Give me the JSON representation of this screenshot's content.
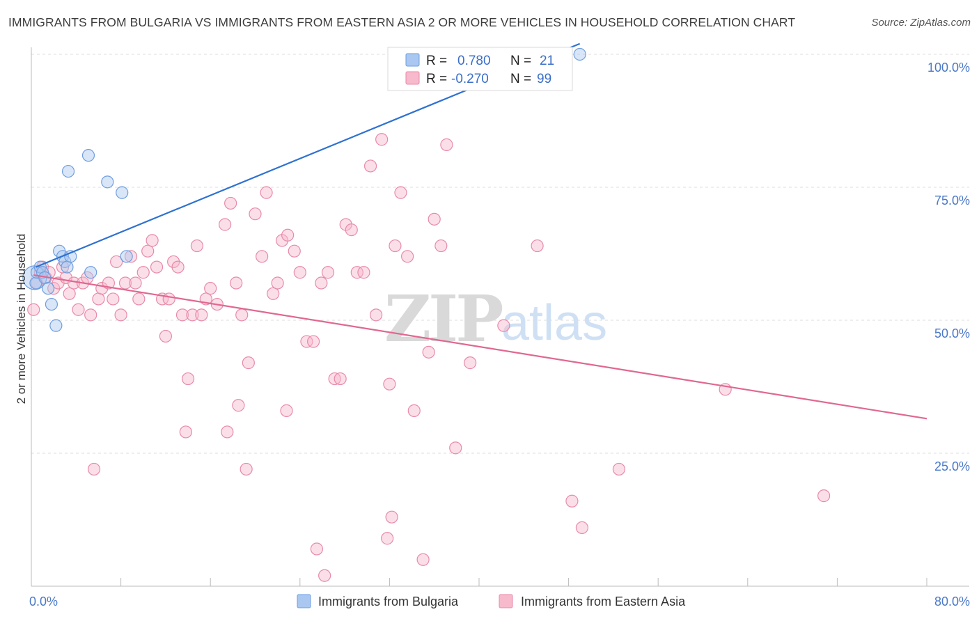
{
  "title": "IMMIGRANTS FROM BULGARIA VS IMMIGRANTS FROM EASTERN ASIA 2 OR MORE VEHICLES IN HOUSEHOLD CORRELATION CHART",
  "source": "Source: ZipAtlas.com",
  "watermark": {
    "zip": "ZIP",
    "atlas": "atlas"
  },
  "stats": {
    "r_label": "R =",
    "n_label": "N =",
    "rows": [
      {
        "r": "0.780",
        "n": "21",
        "color": "#a9c7f0",
        "stroke": "#6f9ee0"
      },
      {
        "r": "-0.270",
        "n": "99",
        "color": "#f7b9cc",
        "stroke": "#e88aa8"
      }
    ]
  },
  "chart_data": {
    "type": "scatter",
    "title": "IMMIGRANTS FROM BULGARIA VS IMMIGRANTS FROM EASTERN ASIA 2 OR MORE VEHICLES IN HOUSEHOLD CORRELATION CHART",
    "xlabel": "",
    "ylabel": "2 or more Vehicles in Household",
    "xlim": [
      0,
      80
    ],
    "ylim": [
      0,
      100
    ],
    "x_tick_labels": [
      "0.0%",
      "80.0%"
    ],
    "y_ticks": [
      25,
      50,
      75,
      100
    ],
    "y_tick_labels": [
      "25.0%",
      "50.0%",
      "75.0%",
      "100.0%"
    ],
    "grid": true,
    "legend_position": "bottom-center",
    "series": [
      {
        "name": "Immigrants from Bulgaria",
        "color": "#a9c7f0",
        "stroke": "#6f9ee0",
        "line_color": "#2f72d0",
        "trend": {
          "x": [
            0.4,
            49
          ],
          "y": [
            60,
            102
          ]
        },
        "points": [
          [
            0.3,
            58
          ],
          [
            0.4,
            57
          ],
          [
            0.5,
            59
          ],
          [
            0.8,
            60
          ],
          [
            1.0,
            59
          ],
          [
            1.2,
            58
          ],
          [
            1.5,
            56
          ],
          [
            1.8,
            53
          ],
          [
            2.2,
            49
          ],
          [
            2.5,
            63
          ],
          [
            2.8,
            62
          ],
          [
            3.0,
            61
          ],
          [
            3.2,
            60
          ],
          [
            3.5,
            62
          ],
          [
            5.3,
            59
          ],
          [
            3.3,
            78
          ],
          [
            5.1,
            81
          ],
          [
            6.8,
            76
          ],
          [
            8.1,
            74
          ],
          [
            8.5,
            62
          ],
          [
            49.0,
            100
          ]
        ],
        "sizes": [
          8,
          8,
          8,
          8,
          8,
          8,
          8,
          8,
          8,
          8,
          8,
          8,
          8,
          8,
          8,
          8,
          8,
          8,
          8,
          8,
          8
        ]
      },
      {
        "name": "Immigrants from Eastern Asia",
        "color": "#f7b9cc",
        "stroke": "#e88aa8",
        "line_color": "#e06890",
        "trend": {
          "x": [
            0.2,
            80
          ],
          "y": [
            58.5,
            31.5
          ]
        },
        "points": [
          [
            0.2,
            52
          ],
          [
            0.5,
            57
          ],
          [
            0.8,
            59
          ],
          [
            1.0,
            60
          ],
          [
            1.3,
            58
          ],
          [
            1.6,
            59
          ],
          [
            2.0,
            56
          ],
          [
            2.4,
            57
          ],
          [
            2.8,
            60
          ],
          [
            3.1,
            58
          ],
          [
            3.4,
            55
          ],
          [
            3.8,
            57
          ],
          [
            4.2,
            52
          ],
          [
            4.6,
            57
          ],
          [
            5.0,
            58
          ],
          [
            5.3,
            51
          ],
          [
            6.0,
            54
          ],
          [
            6.3,
            56
          ],
          [
            6.9,
            57
          ],
          [
            7.3,
            54
          ],
          [
            7.6,
            61
          ],
          [
            8.0,
            51
          ],
          [
            8.4,
            57
          ],
          [
            8.9,
            62
          ],
          [
            9.3,
            57
          ],
          [
            9.6,
            54
          ],
          [
            10.0,
            59
          ],
          [
            10.4,
            63
          ],
          [
            10.8,
            65
          ],
          [
            11.2,
            60
          ],
          [
            11.7,
            54
          ],
          [
            12.0,
            47
          ],
          [
            12.3,
            54
          ],
          [
            12.7,
            61
          ],
          [
            13.1,
            60
          ],
          [
            13.5,
            51
          ],
          [
            14.0,
            39
          ],
          [
            14.4,
            51
          ],
          [
            14.8,
            64
          ],
          [
            15.2,
            51
          ],
          [
            15.6,
            54
          ],
          [
            16.0,
            56
          ],
          [
            16.6,
            53
          ],
          [
            17.3,
            68
          ],
          [
            17.8,
            72
          ],
          [
            18.3,
            57
          ],
          [
            18.8,
            51
          ],
          [
            19.4,
            42
          ],
          [
            20.0,
            70
          ],
          [
            20.6,
            62
          ],
          [
            21.0,
            74
          ],
          [
            21.6,
            55
          ],
          [
            22.0,
            57
          ],
          [
            22.4,
            65
          ],
          [
            22.9,
            66
          ],
          [
            23.5,
            63
          ],
          [
            24.0,
            59
          ],
          [
            24.6,
            46
          ],
          [
            25.2,
            46
          ],
          [
            25.9,
            57
          ],
          [
            26.5,
            59
          ],
          [
            27.1,
            39
          ],
          [
            27.6,
            39
          ],
          [
            28.1,
            68
          ],
          [
            28.6,
            67
          ],
          [
            29.1,
            59
          ],
          [
            29.7,
            59
          ],
          [
            30.3,
            79
          ],
          [
            30.8,
            51
          ],
          [
            31.3,
            84
          ],
          [
            32.0,
            38
          ],
          [
            32.5,
            64
          ],
          [
            33.0,
            74
          ],
          [
            33.6,
            62
          ],
          [
            34.2,
            33
          ],
          [
            35.0,
            5
          ],
          [
            35.5,
            44
          ],
          [
            36.0,
            69
          ],
          [
            36.6,
            64
          ],
          [
            37.1,
            83
          ],
          [
            37.9,
            26
          ],
          [
            39.2,
            42
          ],
          [
            42.2,
            49
          ],
          [
            45.2,
            64
          ],
          [
            48.3,
            16
          ],
          [
            49.2,
            11
          ],
          [
            52.5,
            22
          ],
          [
            62.0,
            37
          ],
          [
            70.8,
            17
          ],
          [
            5.6,
            22
          ],
          [
            13.8,
            29
          ],
          [
            17.5,
            29
          ],
          [
            18.5,
            34
          ],
          [
            19.2,
            22
          ],
          [
            22.8,
            33
          ],
          [
            25.5,
            7
          ],
          [
            26.2,
            2
          ],
          [
            31.8,
            9
          ],
          [
            32.2,
            13
          ]
        ]
      }
    ]
  }
}
